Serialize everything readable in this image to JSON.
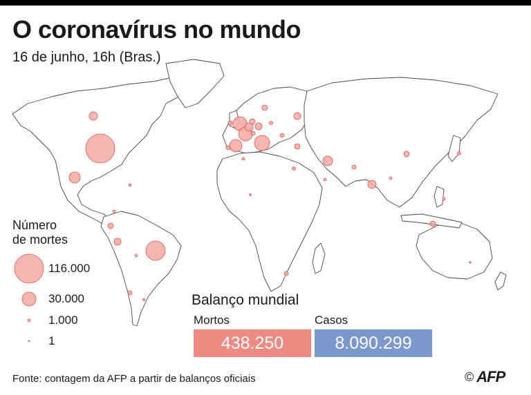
{
  "header": {
    "title": "O coronavírus no mundo",
    "subtitle": "16 de junho, 16h (Bras.)"
  },
  "legend": {
    "title_line1": "Número",
    "title_line2": "de mortes",
    "items": [
      {
        "label": "116.000",
        "value": 116000
      },
      {
        "label": "30.000",
        "value": 30000
      },
      {
        "label": "1.000",
        "value": 1000
      },
      {
        "label": "1",
        "value": 1
      }
    ]
  },
  "summary": {
    "title": "Balanço mundial",
    "deaths_label": "Mortos",
    "deaths_value": "438.250",
    "cases_label": "Casos",
    "cases_value": "8.090.299"
  },
  "footer": {
    "source": "Fonte: contagem da AFP a partir de balanços oficiais",
    "copyright": "©",
    "logo": "AFP"
  },
  "colors": {
    "bubble_fill": "#f4a9a3",
    "bubble_stroke": "#e2534a",
    "deaths_box": "#ef8a82",
    "cases_box": "#7b98cc"
  }
}
